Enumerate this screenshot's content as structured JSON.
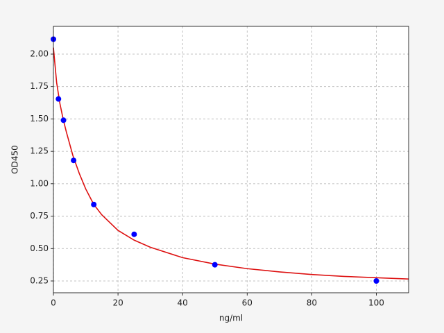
{
  "chart_data": {
    "type": "scatter",
    "x_label": "ng/ml",
    "y_label": "OD450",
    "xlim": [
      0,
      110
    ],
    "ylim": [
      0.159,
      2.214
    ],
    "xticks": [
      0,
      20,
      40,
      60,
      80,
      100
    ],
    "yticks": [
      0.25,
      {
        "value": 0.5,
        "label": "0.50"
      },
      0.75,
      {
        "value": 1,
        "label": "1.00"
      },
      1.25,
      {
        "value": 1.5,
        "label": "1.50"
      },
      1.75,
      {
        "value": 2,
        "label": "2.00"
      }
    ],
    "grid": true,
    "series": [
      {
        "type": "scatter",
        "color": "#0000ff",
        "x": [
          0,
          1.5625,
          3.125,
          6.25,
          12.5,
          25,
          50,
          100
        ],
        "values": [
          2.115,
          1.654,
          1.49,
          1.18,
          0.84,
          0.61,
          0.375,
          0.25
        ]
      },
      {
        "type": "line",
        "color": "#dd1111",
        "x": [
          0,
          1,
          2,
          3,
          4,
          6,
          8,
          10,
          12.5,
          15,
          20,
          25,
          30,
          40,
          50,
          60,
          70,
          80,
          90,
          100,
          110
        ],
        "values": [
          2.05,
          1.78,
          1.62,
          1.5,
          1.4,
          1.22,
          1.08,
          0.96,
          0.84,
          0.76,
          0.64,
          0.565,
          0.51,
          0.43,
          0.38,
          0.345,
          0.32,
          0.3,
          0.285,
          0.275,
          0.265
        ]
      }
    ]
  }
}
